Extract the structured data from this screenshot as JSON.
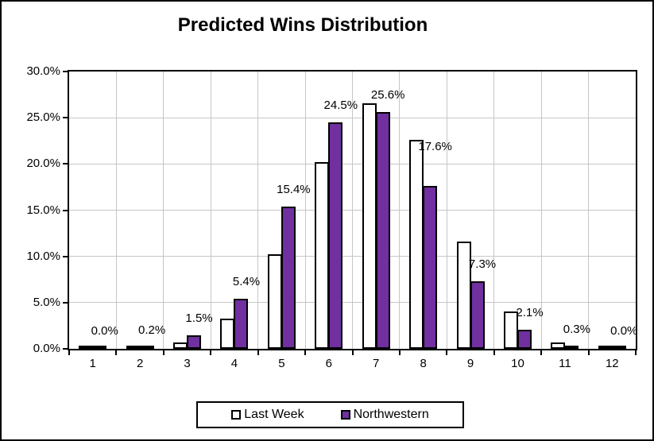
{
  "title": "Predicted Wins Distribution",
  "chart_data": {
    "type": "bar",
    "categories": [
      "1",
      "2",
      "3",
      "4",
      "5",
      "6",
      "7",
      "8",
      "9",
      "10",
      "11",
      "12"
    ],
    "series": [
      {
        "name": "Last Week",
        "color": "#FFFFFF",
        "values": [
          0.1,
          0.1,
          0.7,
          3.3,
          10.2,
          20.2,
          26.6,
          22.6,
          11.6,
          4.0,
          0.7,
          0.1
        ]
      },
      {
        "name": "Northwestern",
        "color": "#7030A0",
        "values": [
          0.0,
          0.2,
          1.5,
          5.4,
          15.4,
          24.5,
          25.6,
          17.6,
          7.3,
          2.1,
          0.3,
          0.0
        ],
        "data_labels": [
          "0.0%",
          "0.2%",
          "1.5%",
          "5.4%",
          "15.4%",
          "24.5%",
          "25.6%",
          "17.6%",
          "7.3%",
          "2.1%",
          "0.3%",
          "0.0%"
        ]
      }
    ],
    "xlabel": "",
    "ylabel": "",
    "ylim": [
      0,
      30
    ],
    "ytick_labels": [
      "0.0%",
      "5.0%",
      "10.0%",
      "15.0%",
      "20.0%",
      "25.0%",
      "30.0%"
    ],
    "grid": true,
    "legend_position": "bottom",
    "colors": {
      "bar_border": "#000000",
      "gridline": "#C6C6C6",
      "background": "#FFFFFF",
      "text": "#000000"
    }
  }
}
